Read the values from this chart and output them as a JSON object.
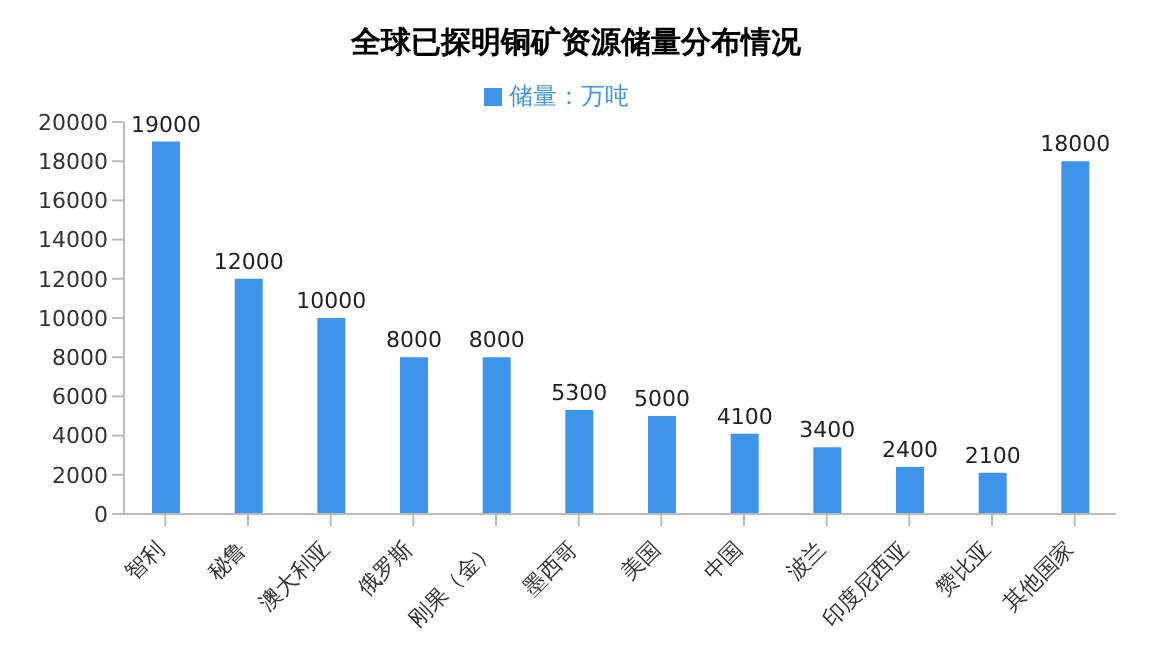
{
  "chart_data": {
    "type": "bar",
    "title": "全球已探明铜矿资源储量分布情况",
    "categories": [
      "智利",
      "秘鲁",
      "澳大利亚",
      "俄罗斯",
      "刚果（金）",
      "墨西哥",
      "美国",
      "中国",
      "波兰",
      "印度尼西亚",
      "赞比亚",
      "其他国家"
    ],
    "series": [
      {
        "name": "储量：万吨",
        "color": "#3d94ea",
        "values": [
          19000,
          12000,
          10000,
          8000,
          8000,
          5300,
          5000,
          4100,
          3400,
          2400,
          2100,
          18000
        ]
      }
    ],
    "ylim": [
      0,
      20000
    ],
    "yticks": [
      0,
      2000,
      4000,
      6000,
      8000,
      10000,
      12000,
      14000,
      16000,
      18000,
      20000
    ],
    "grid": false,
    "legend": "top",
    "data_labels": true
  }
}
